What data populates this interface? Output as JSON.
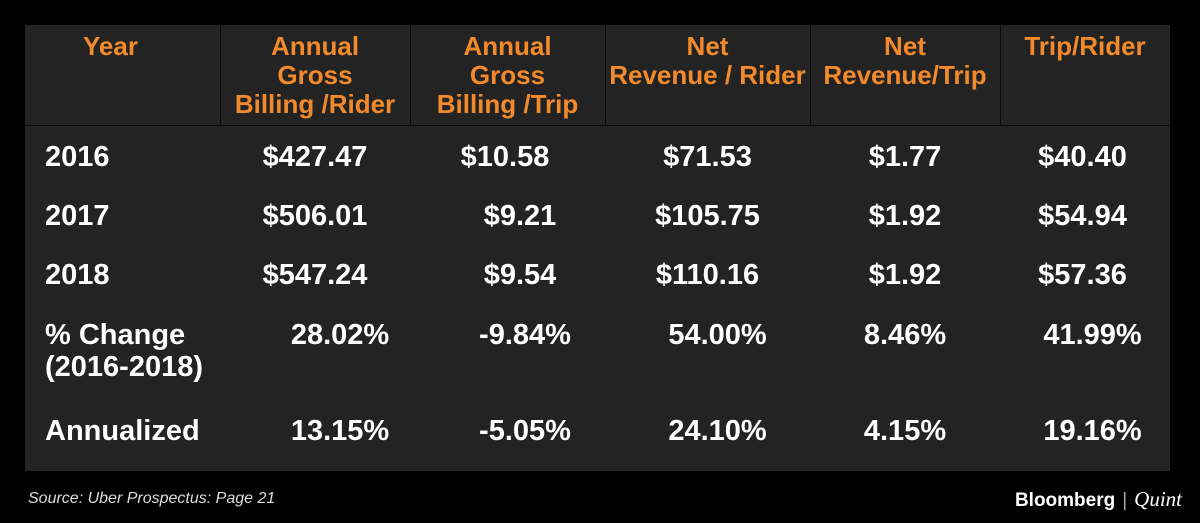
{
  "table": {
    "headers": [
      "Year",
      "Annual\nGross\nBilling /Rider",
      "Annual\nGross\nBilling /Trip",
      "Net\nRevenue / Rider",
      "Net\nRevenue/Trip",
      "Trip/Rider"
    ],
    "rows": [
      {
        "label": "2016",
        "values": [
          "$427.47",
          "$10.58",
          "$71.53",
          "$1.77",
          "$40.40"
        ]
      },
      {
        "label": "2017",
        "values": [
          "$506.01",
          "$9.21",
          "$105.75",
          "$1.92",
          "$54.94"
        ]
      },
      {
        "label": "2018",
        "values": [
          "$547.24",
          "$9.54",
          "$110.16",
          "$1.92",
          "$57.36"
        ]
      },
      {
        "label": "% Change\n(2016-2018)",
        "values": [
          "28.02%",
          "-9.84%",
          "54.00%",
          "8.46%",
          "41.99%"
        ]
      },
      {
        "label": "Annualized",
        "values": [
          "13.15%",
          "-5.05%",
          "24.10%",
          "4.15%",
          "19.16%"
        ]
      }
    ]
  },
  "footer": {
    "source": "Source: Uber Prospectus: Page 21",
    "brand_primary": "Bloomberg",
    "brand_separator": "|",
    "brand_secondary": "Quint"
  },
  "colors": {
    "header_text": "#f28a2c",
    "cell_text": "#ffffff",
    "panel_bg": "#232323",
    "page_bg": "#000000"
  }
}
